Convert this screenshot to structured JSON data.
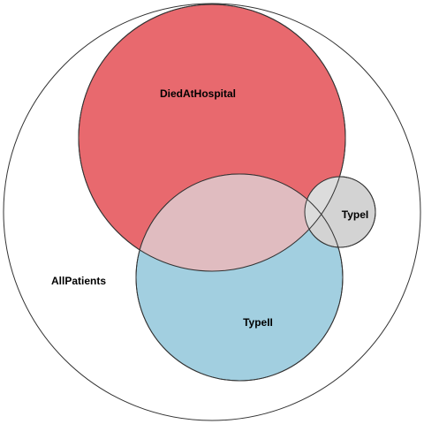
{
  "diagram": {
    "type": "euler",
    "sets": [
      {
        "id": "all",
        "label": "AllPatients",
        "color": "#ffffff"
      },
      {
        "id": "died",
        "label": "DiedAtHospital",
        "color": "#e8696e"
      },
      {
        "id": "type2",
        "label": "TypeII",
        "color": "#a2cfe0"
      },
      {
        "id": "type1",
        "label": "TypeI",
        "color": "#d3d3d3"
      }
    ],
    "overlap_colors": {
      "died_type2": "#e0bcc0",
      "died_type1": "#dcdcdc"
    },
    "outline_color": "#333333"
  }
}
